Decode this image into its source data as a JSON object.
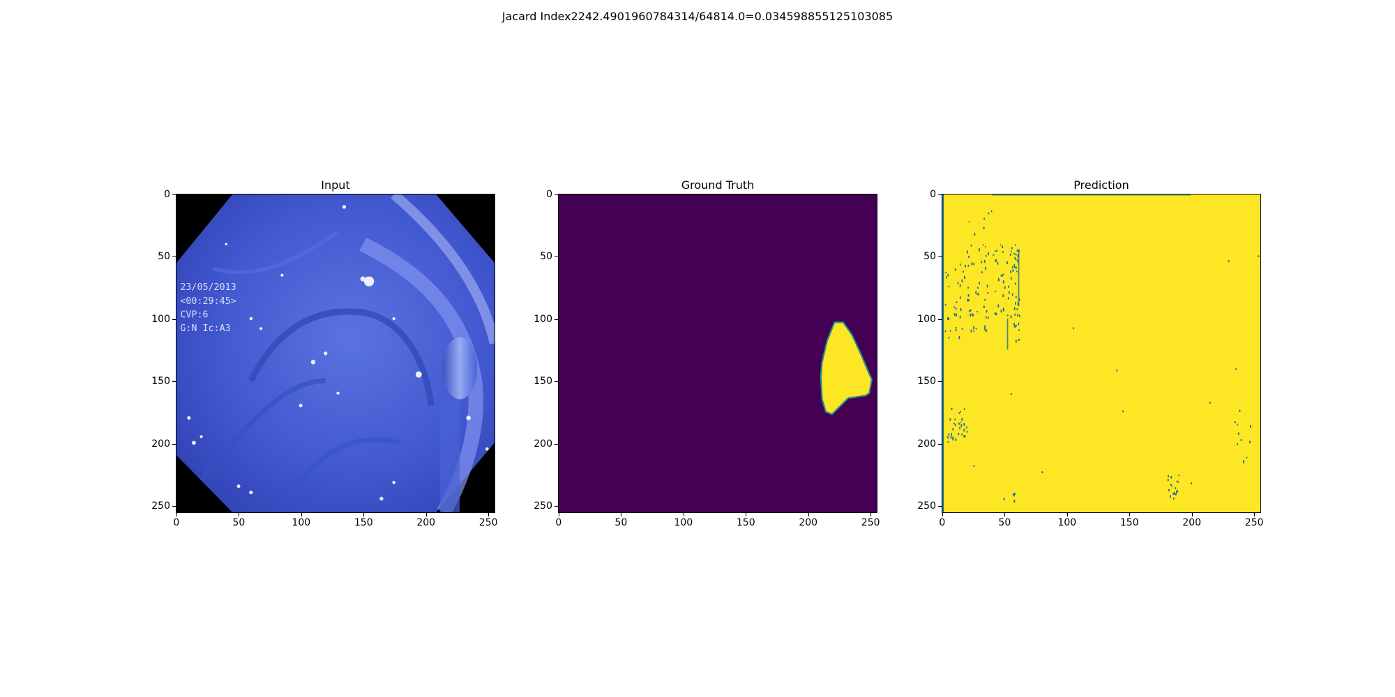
{
  "figure": {
    "suptitle": "Jacard Index2242.4901960784314/64814.0=0.034598855125103085",
    "panels": [
      {
        "title": "Input"
      },
      {
        "title": "Ground Truth"
      },
      {
        "title": "Prediction"
      }
    ],
    "axis": {
      "range": [
        0,
        255
      ],
      "x_ticks": [
        "0",
        "50",
        "100",
        "150",
        "200",
        "250"
      ],
      "y_ticks": [
        "0",
        "50",
        "100",
        "150",
        "200",
        "250"
      ]
    },
    "input_overlay_text": [
      "23/05/2013",
      "<00:29:45>",
      "CVP:6",
      "G:N   Ic:A3"
    ]
  },
  "colors": {
    "mask_background": "#440154",
    "mask_foreground": "#fde725",
    "prediction_noise": "#1f6f8b",
    "tissue_blue": "#4a63d8",
    "tissue_light": "#8fa3f2"
  }
}
